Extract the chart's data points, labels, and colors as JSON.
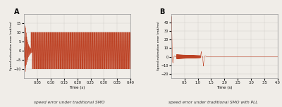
{
  "fig_width": 4.0,
  "fig_height": 1.52,
  "dpi": 100,
  "bg_color": "#f0ede8",
  "line_color": "#b83010",
  "panel_A": {
    "label": "A",
    "xlabel": "Time (s)",
    "ylabel": "Speed estimation error (rad/ms)",
    "xlim": [
      0,
      0.4
    ],
    "ylim": [
      -15,
      20
    ],
    "yticks": [
      -10,
      -5,
      0,
      5,
      10,
      15
    ],
    "xticks": [
      0.05,
      0.1,
      0.15,
      0.2,
      0.25,
      0.3,
      0.35,
      0.4
    ],
    "caption": "speed error under traditional SMO",
    "initial_peak": 15,
    "initial_trough": -12,
    "steady_amp": 10,
    "osc_freq": 500
  },
  "panel_B": {
    "label": "B",
    "xlabel": "Time (s)",
    "ylabel": "Speed estimation error (rad/ms)",
    "xlim": [
      0,
      4
    ],
    "ylim": [
      -25,
      50
    ],
    "yticks": [
      -20,
      -10,
      0,
      10,
      20,
      30,
      40
    ],
    "xticks": [
      0.5,
      1.0,
      1.5,
      2.0,
      2.5,
      3.0,
      3.5,
      4.0
    ],
    "caption": "speed error under traditional SMO with PLL",
    "initial_spike_max": 47,
    "initial_spike_min": -22,
    "small_osc_amp": 2.5,
    "small_osc_freq": 80,
    "small_osc_start": 0.2,
    "small_osc_end": 1.1,
    "mid_spike_max": 6,
    "mid_spike_min": -11,
    "mid_spike_time": 1.2
  }
}
